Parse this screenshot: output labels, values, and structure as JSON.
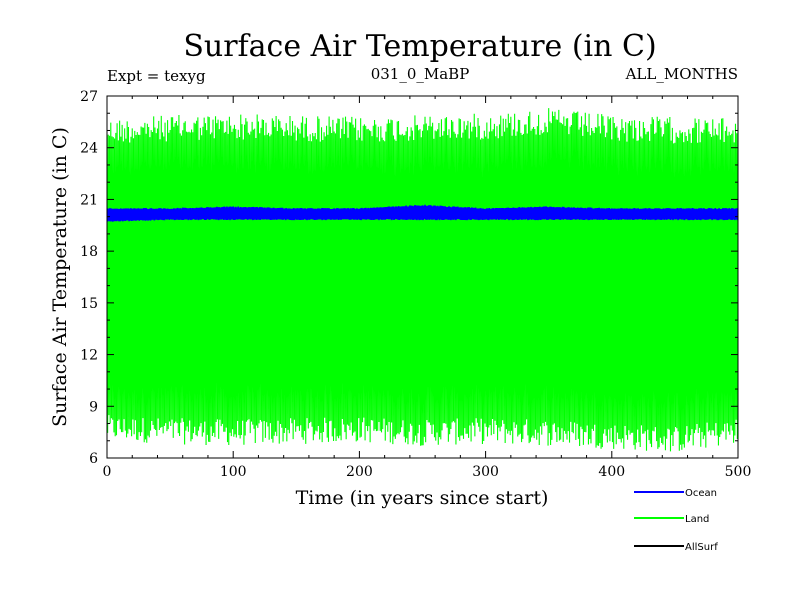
{
  "header": {
    "title": "Surface Air Temperature (in C)",
    "expt": "Expt = texyg",
    "run": "031_0_MaBP",
    "months": "ALL_MONTHS"
  },
  "chart_data": {
    "type": "line",
    "title": "Surface Air Temperature (in C)",
    "xlabel": "Time (in years since start)",
    "ylabel": "Surface Air Temperature (in C)",
    "xlim": [
      0,
      500
    ],
    "ylim": [
      6,
      27
    ],
    "xticks": [
      0,
      100,
      200,
      300,
      400,
      500
    ],
    "yticks": [
      6,
      9,
      12,
      15,
      18,
      21,
      24,
      27
    ],
    "grid": false,
    "legend_position": "bottom-right",
    "series": [
      {
        "name": "Ocean",
        "color": "#0000ff",
        "x": [
          0,
          50,
          100,
          150,
          200,
          250,
          300,
          350,
          400,
          450,
          500
        ],
        "y": [
          20.1,
          20.1,
          20.1,
          20.1,
          20.1,
          20.2,
          20.1,
          20.2,
          20.1,
          20.1,
          20.1
        ],
        "y_min": [
          19.7,
          19.8,
          19.8,
          19.8,
          19.8,
          19.8,
          19.8,
          19.8,
          19.8,
          19.8,
          19.8
        ],
        "y_max": [
          20.5,
          20.5,
          20.6,
          20.5,
          20.5,
          20.7,
          20.5,
          20.6,
          20.5,
          20.5,
          20.5
        ]
      },
      {
        "name": "Land",
        "color": "#00ff00",
        "x": [
          0,
          50,
          100,
          150,
          200,
          250,
          300,
          350,
          400,
          450,
          500
        ],
        "y": [
          15.8,
          15.8,
          15.8,
          15.8,
          15.8,
          15.8,
          15.8,
          15.8,
          15.8,
          15.8,
          15.8
        ],
        "y_min": [
          7.0,
          6.8,
          6.7,
          6.8,
          6.9,
          6.7,
          6.8,
          6.7,
          6.5,
          6.3,
          6.8
        ],
        "y_max": [
          25.7,
          25.9,
          26.0,
          25.9,
          25.8,
          25.9,
          26.0,
          26.3,
          25.9,
          25.8,
          25.7
        ]
      },
      {
        "name": "AllSurf",
        "color": "#000000",
        "x": [],
        "y": []
      }
    ]
  }
}
